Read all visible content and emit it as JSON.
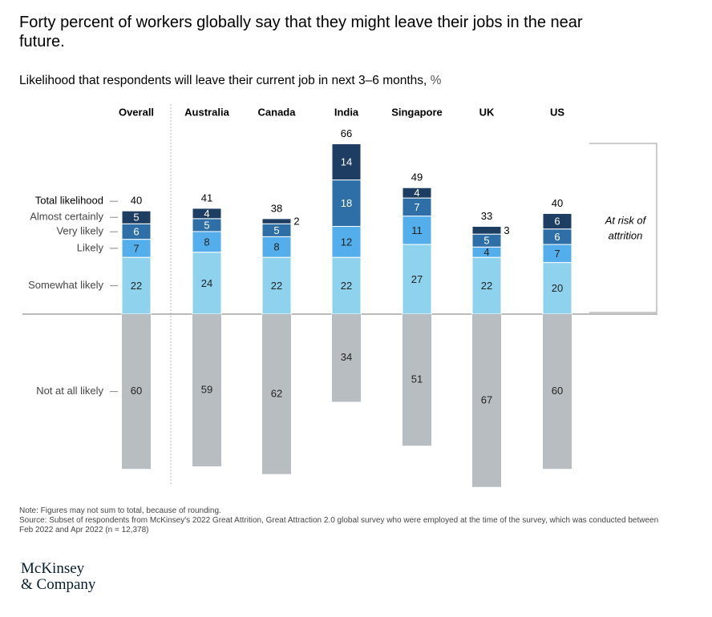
{
  "chart_data": {
    "type": "diverging_stacked_bar",
    "title": "Forty percent of workers globally say that they might leave their jobs in the near future.",
    "subtitle": "Likelihood that respondents will leave their current job in next 3–6 months,",
    "subtitle_unit": "%",
    "categories": [
      "Overall",
      "Australia",
      "Canada",
      "India",
      "Singapore",
      "UK",
      "US"
    ],
    "totals": {
      "name": "Total likelihood",
      "values": [
        40,
        41,
        38,
        66,
        49,
        33,
        40
      ]
    },
    "series": [
      {
        "name": "Almost certainly",
        "color": "#1e3d62",
        "values": [
          5,
          4,
          2,
          14,
          4,
          3,
          6
        ]
      },
      {
        "name": "Very likely",
        "color": "#2f6fa7",
        "values": [
          6,
          5,
          5,
          18,
          7,
          5,
          6
        ]
      },
      {
        "name": "Likely",
        "color": "#53aeeb",
        "values": [
          7,
          8,
          8,
          12,
          11,
          4,
          7
        ]
      },
      {
        "name": "Somewhat likely",
        "color": "#8fd2ee",
        "values": [
          22,
          24,
          22,
          22,
          27,
          22,
          20
        ]
      },
      {
        "name": "Not at all likely",
        "color": "#b8bdc2",
        "values": [
          60,
          59,
          62,
          34,
          51,
          67,
          60
        ]
      }
    ],
    "below_series": [
      4
    ],
    "annotation_lines": [
      "At risk of",
      "attrition"
    ],
    "note": "Note: Figures may not sum to total, because of rounding.",
    "source": "Source: Subset of respondents from McKinsey's 2022 Great Attrition, Great Attraction 2.0 global survey who were employed at the time of the survey, which was conducted between Feb 2022 and Apr 2022 (n = 12,378)",
    "logo_lines": [
      "McKinsey",
      "& Company"
    ]
  }
}
